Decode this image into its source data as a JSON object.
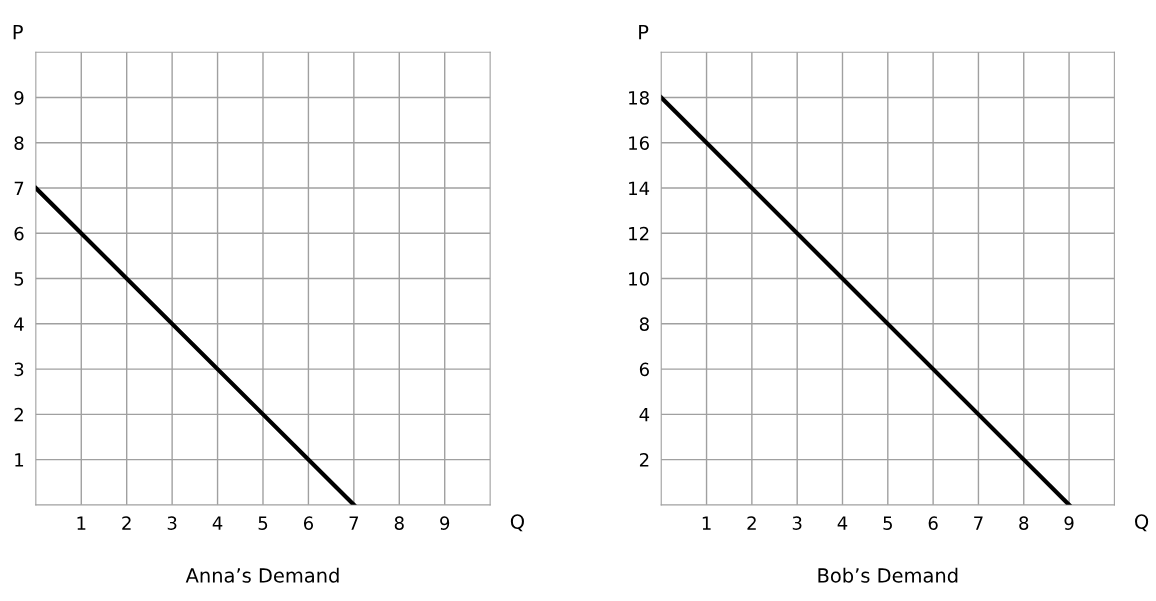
{
  "chart_data": [
    {
      "type": "line",
      "title": "Anna’s Demand",
      "xlabel": "Q",
      "ylabel": "P",
      "series": [
        {
          "color": "#000000",
          "x": [
            0,
            7
          ],
          "values": [
            7,
            0
          ]
        }
      ],
      "xlim": [
        0,
        10
      ],
      "ylim": [
        0,
        10
      ],
      "xticks": [
        1,
        2,
        3,
        4,
        5,
        6,
        7,
        8,
        9
      ],
      "yticks": [
        1,
        2,
        3,
        4,
        5,
        6,
        7,
        8,
        9
      ],
      "grid": true,
      "marker": "none",
      "line_style": "solid"
    },
    {
      "type": "line",
      "title": "Bob’s Demand",
      "xlabel": "Q",
      "ylabel": "P",
      "series": [
        {
          "color": "#000000",
          "x": [
            0,
            9
          ],
          "values": [
            18,
            0
          ]
        }
      ],
      "xlim": [
        0,
        10
      ],
      "ylim": [
        0,
        20
      ],
      "xticks": [
        1,
        2,
        3,
        4,
        5,
        6,
        7,
        8,
        9
      ],
      "yticks": [
        2,
        4,
        6,
        8,
        10,
        12,
        14,
        16,
        18
      ],
      "grid": true,
      "marker": "none",
      "line_style": "solid"
    }
  ]
}
